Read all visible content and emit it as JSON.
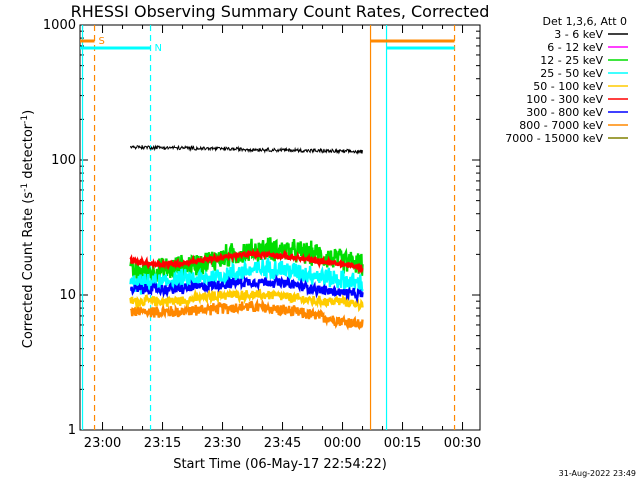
{
  "chart_data": {
    "type": "line",
    "title": "RHESSI Observing Summary Count Rates, Corrected",
    "xlabel": "Start Time (06-May-17 22:54:22)",
    "ylabel_main": "Corrected Count Rate (s",
    "ylabel_sup1": "-1",
    "ylabel_mid": " detector",
    "ylabel_sup2": "-1",
    "ylabel_end": ")",
    "ylabel": "Corrected Count Rate (s-1 detector-1)",
    "yscale": "log",
    "ylim": [
      1,
      1000
    ],
    "xlim": [
      "22:54:22",
      "00:34:22"
    ],
    "y_ticks": [
      {
        "value": 1,
        "label": "1"
      },
      {
        "value": 10,
        "label": "10"
      },
      {
        "value": 100,
        "label": "100"
      },
      {
        "value": 1000,
        "label": "1000"
      }
    ],
    "x_ticks": [
      {
        "value": "23:00",
        "label": "23:00"
      },
      {
        "value": "23:15",
        "label": "23:15"
      },
      {
        "value": "23:30",
        "label": "23:30"
      },
      {
        "value": "23:45",
        "label": "23:45"
      },
      {
        "value": "00:00",
        "label": "00:00"
      },
      {
        "value": "00:15",
        "label": "00:15"
      },
      {
        "value": "00:30",
        "label": "00:30"
      }
    ],
    "legend_header": "Det 1,3,6, Att 0",
    "legend_placement": "right",
    "series": [
      {
        "name": "3 - 6 keV",
        "color": "#000000",
        "start": "23:07",
        "end": "00:05",
        "values": [
          125,
          124,
          123,
          122,
          121,
          120,
          119,
          118,
          117,
          116,
          115
        ],
        "noise": 0.02
      },
      {
        "name": "6 - 12 keV",
        "color": "#ff00ff",
        "start": "23:07",
        "end": "00:05",
        "values": [],
        "noise": 0
      },
      {
        "name": "12 - 25 keV",
        "color": "#00dd00",
        "start": "23:07",
        "end": "00:05",
        "values": [
          15,
          15,
          16,
          17,
          19,
          21,
          22,
          21,
          20,
          18,
          17
        ],
        "noise": 0.12
      },
      {
        "name": "25 - 50 keV",
        "color": "#00ffff",
        "start": "23:07",
        "end": "00:05",
        "values": [
          12,
          12,
          13,
          13,
          14,
          15,
          16,
          15,
          14,
          13,
          12
        ],
        "noise": 0.1
      },
      {
        "name": "50 - 100 keV",
        "color": "#ffcc00",
        "start": "23:07",
        "end": "00:05",
        "values": [
          9,
          9,
          9,
          9.5,
          10,
          10,
          10,
          9.5,
          9,
          9,
          8.5
        ],
        "noise": 0.05
      },
      {
        "name": "100 - 300 keV",
        "color": "#ff0000",
        "start": "23:07",
        "end": "00:05",
        "values": [
          18,
          17,
          17,
          18,
          19,
          20,
          20,
          19,
          18,
          17,
          16
        ],
        "noise": 0.03
      },
      {
        "name": "300 - 800 keV",
        "color": "#0000ff",
        "start": "23:07",
        "end": "00:05",
        "values": [
          11,
          11,
          11,
          11.5,
          12,
          12.5,
          12.5,
          12,
          11,
          10.5,
          10
        ],
        "noise": 0.05
      },
      {
        "name": "800 - 7000 keV",
        "color": "#ff8800",
        "start": "23:07",
        "end": "00:05",
        "values": [
          7.5,
          7.5,
          7.5,
          7.8,
          8,
          8.2,
          8,
          7.5,
          7,
          6.5,
          6
        ],
        "noise": 0.06
      },
      {
        "name": "7000 - 15000 keV",
        "color": "#808000",
        "start": "23:07",
        "end": "00:05",
        "values": [],
        "noise": 0
      }
    ],
    "flags": [
      {
        "label": "S",
        "color": "#ff8800",
        "value": 800,
        "start": "22:54:22",
        "end": "22:58",
        "row": 0
      },
      {
        "label": "N",
        "color": "#00ffff",
        "value": 700,
        "start": "22:54:22",
        "end": "23:12",
        "row": 1
      },
      {
        "label": "",
        "color": "#ff8800",
        "value": 800,
        "start": "00:07",
        "end": "00:28",
        "row": 0
      },
      {
        "label": "",
        "color": "#00ffff",
        "value": 700,
        "start": "00:11",
        "end": "00:28",
        "row": 1
      }
    ],
    "vlines": [
      {
        "time": "22:55",
        "color": "#00ffff",
        "style": "solid"
      },
      {
        "time": "22:58",
        "color": "#ff8800",
        "style": "dashed"
      },
      {
        "time": "23:12",
        "color": "#00ffff",
        "style": "dashed"
      },
      {
        "time": "00:07",
        "color": "#ff8800",
        "style": "solid"
      },
      {
        "time": "00:11",
        "color": "#00ffff",
        "style": "solid"
      },
      {
        "time": "00:28",
        "color": "#ff8800",
        "style": "dashed"
      }
    ],
    "grid": false
  },
  "footer_date": "31-Aug-2022 23:49"
}
